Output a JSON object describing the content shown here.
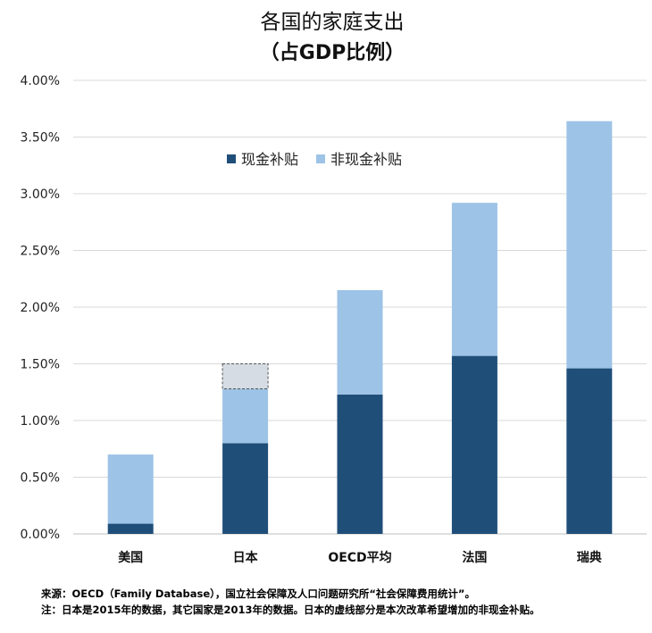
{
  "chart_data": {
    "type": "bar",
    "stacked": true,
    "title": "各国的家庭支出",
    "subtitle": "（占GDP比例）",
    "categories": [
      "美国",
      "日本",
      "OECD平均",
      "法国",
      "瑞典"
    ],
    "series": [
      {
        "name": "现金补贴",
        "values": [
          0.09,
          0.8,
          1.23,
          1.57,
          1.46
        ],
        "color": "#1f4e79"
      },
      {
        "name": "非现金补贴",
        "values": [
          0.61,
          0.48,
          0.92,
          1.35,
          2.18
        ],
        "color": "#9dc3e6"
      }
    ],
    "proposed_increment": {
      "category": "日本",
      "value": 0.22,
      "color": "#d6dce4",
      "border": "dashed"
    },
    "yticks": [
      "0.00%",
      "0.50%",
      "1.00%",
      "1.50%",
      "2.00%",
      "2.50%",
      "3.00%",
      "3.50%",
      "4.00%"
    ],
    "ylim": [
      0,
      4.0
    ],
    "grid": true,
    "legend_position": "top-center"
  },
  "notes": {
    "source": "来源：OECD（Family Database），国立社会保障及人口问题研究所“社会保障费用统计”。",
    "note": "注：日本是2015年的数据，其它国家是2013年的数据。日本的虚线部分是本次改革希望增加的非现金补贴。"
  }
}
